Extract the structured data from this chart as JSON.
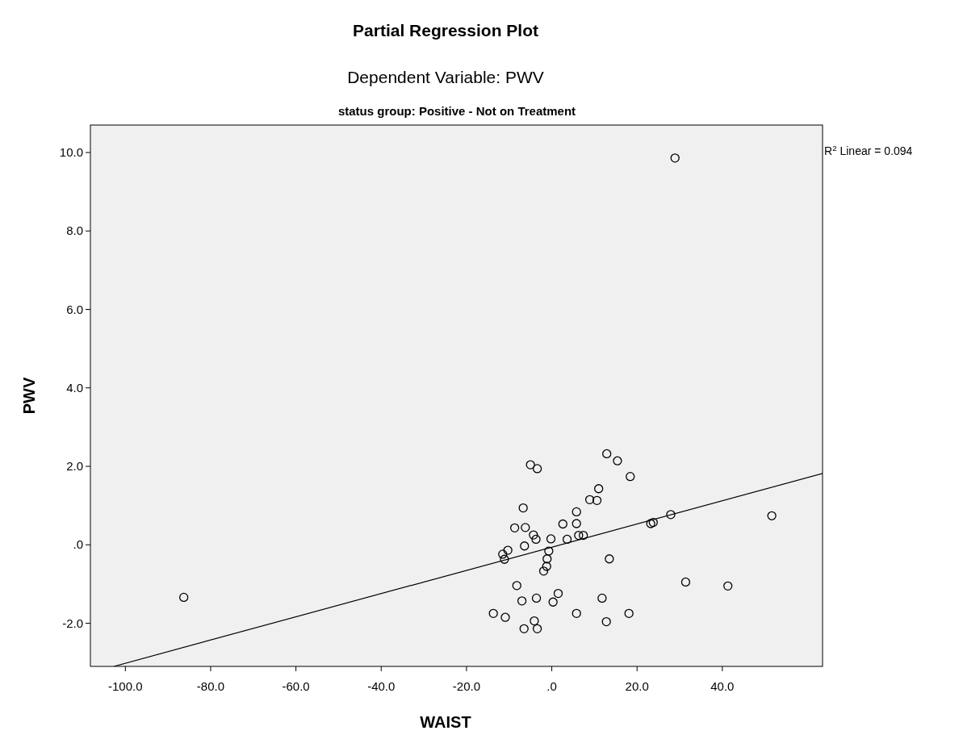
{
  "chart_data": {
    "type": "scatter",
    "title": "Partial Regression Plot",
    "subtitle": "Dependent Variable: PWV",
    "xlabel": "WAIST",
    "ylabel": "PWV",
    "annotations": [
      "status group: Positive - Not on Treatment",
      "R$^{2}$ Linear = 0.094"
    ],
    "xlim": [
      -108.2,
      63.5
    ],
    "xticks": [
      {
        "value": -100,
        "label": "-100.0"
      },
      {
        "value": -80,
        "label": "-80.0"
      },
      {
        "value": -60,
        "label": "-60.0"
      },
      {
        "value": -40,
        "label": "-40.0"
      },
      {
        "value": -20,
        "label": "-20.0"
      },
      {
        "value": 0,
        "label": ".0"
      },
      {
        "value": 20,
        "label": "20.0"
      },
      {
        "value": 40,
        "label": "40.0"
      }
    ],
    "ylim": [
      -3.1,
      10.7
    ],
    "yticks": [
      {
        "value": -2,
        "label": "-2.0"
      },
      {
        "value": 0,
        "label": ".0"
      },
      {
        "value": 2,
        "label": "2.0"
      },
      {
        "value": 4,
        "label": "4.0"
      },
      {
        "value": 6,
        "label": "6.0"
      },
      {
        "value": 8,
        "label": "8.0"
      },
      {
        "value": 10,
        "label": "10.0"
      }
    ],
    "grid": false,
    "series": [
      {
        "color": "#000000",
        "marker": "circle",
        "x": [
          -5.0,
          -3.4,
          12.9,
          15.4,
          18.4,
          11.0,
          8.9,
          10.6,
          -6.7,
          5.8,
          5.8,
          2.6,
          -8.7,
          -6.2,
          -4.3,
          -3.7,
          -0.2,
          3.6,
          6.3,
          7.4,
          23.2,
          23.8,
          27.9,
          -6.4,
          -10.3,
          -11.5,
          -11.1,
          -0.7,
          -1.1,
          -1.2,
          -1.9,
          13.5,
          -8.2,
          -7.0,
          -3.6,
          1.5,
          0.3,
          11.8,
          -13.7,
          -10.9,
          -4.1,
          -6.5,
          -3.4,
          5.8,
          12.8,
          18.1,
          31.4,
          51.6,
          41.3,
          28.9,
          -86.3
        ],
        "values": [
          2.04,
          1.94,
          2.32,
          2.14,
          1.74,
          1.43,
          1.15,
          1.13,
          0.94,
          0.84,
          0.54,
          0.53,
          0.43,
          0.44,
          0.25,
          0.14,
          0.15,
          0.14,
          0.24,
          0.24,
          0.54,
          0.57,
          0.77,
          -0.03,
          -0.14,
          -0.24,
          -0.37,
          -0.16,
          -0.36,
          -0.55,
          -0.67,
          -0.36,
          -1.04,
          -1.43,
          -1.36,
          -1.24,
          -1.46,
          -1.36,
          -1.75,
          -1.85,
          -1.94,
          -2.14,
          -2.14,
          -1.75,
          -1.96,
          -1.75,
          -0.95,
          0.74,
          -1.05,
          9.86,
          -1.34
        ]
      },
      {
        "type": "line",
        "color": "#000000",
        "marker": "none",
        "x": [
          -102.7,
          63.5
        ],
        "values": [
          -3.1,
          1.82
        ]
      }
    ]
  }
}
